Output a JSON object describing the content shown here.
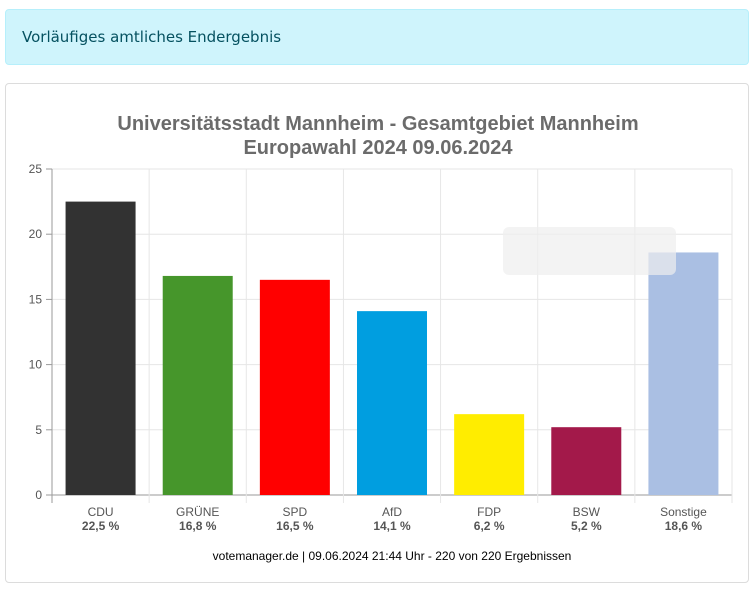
{
  "alert": {
    "text": "Vorläufiges amtliches Endergebnis"
  },
  "chart_data": {
    "type": "bar",
    "title": "Universitätsstadt Mannheim - Gesamtgebiet Mannheim",
    "subtitle": "Europawahl 2024 09.06.2024",
    "categories": [
      "CDU",
      "GRÜNE",
      "SPD",
      "AfD",
      "FDP",
      "BSW",
      "Sonstige"
    ],
    "values": [
      22.5,
      16.8,
      16.5,
      14.1,
      6.2,
      5.2,
      18.6
    ],
    "value_labels": [
      "22,5 %",
      "16,8 %",
      "16,5 %",
      "14,1 %",
      "6,2 %",
      "5,2 %",
      "18,6 %"
    ],
    "colors": [
      "#323232",
      "#46962b",
      "#ff0000",
      "#009ee0",
      "#ffed00",
      "#a3194a",
      "#aabfe3"
    ],
    "ylim": [
      0,
      25
    ],
    "yticks": [
      "0",
      "5",
      "10",
      "15",
      "20",
      "25"
    ],
    "grid": true,
    "footer": "votemanager.de | 09.06.2024 21:44 Uhr - 220 von 220 Ergebnissen"
  }
}
